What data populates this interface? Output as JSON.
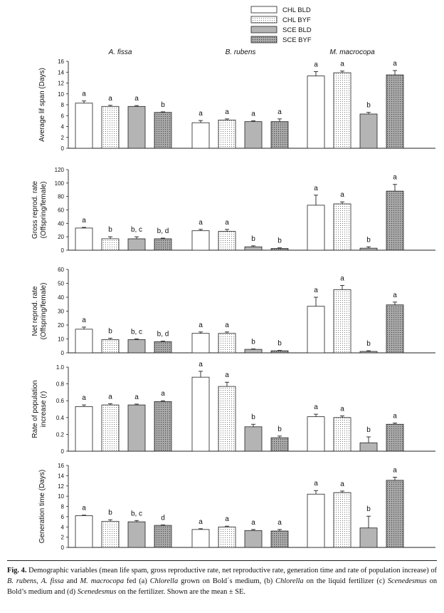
{
  "legend": [
    {
      "label": "CHL BLD",
      "pattern": "white"
    },
    {
      "label": "CHL BYF",
      "pattern": "dots-light"
    },
    {
      "label": "SCE BLD",
      "pattern": "gray"
    },
    {
      "label": "SCE BYF",
      "pattern": "dots-dark"
    }
  ],
  "species": [
    "A. fissa",
    "B. rubens",
    "M. macrocopa"
  ],
  "colors": {
    "white": "#ffffff",
    "gray": "#b4b4b4",
    "dots_light_bg": "#ffffff",
    "dots_dark_bg": "#a9a9a9",
    "stroke": "#222222"
  },
  "chart_data": [
    {
      "type": "bar",
      "ylabel": [
        "Average lif span (Days)"
      ],
      "ylim": [
        0,
        16
      ],
      "yticks": [
        "0",
        "2",
        "4",
        "6",
        "8",
        "10",
        "12",
        "14",
        "16"
      ],
      "groups": [
        "A. fissa",
        "B. rubens",
        "M. macrocopa"
      ],
      "series": [
        {
          "name": "CHL BLD",
          "values": [
            8.3,
            4.7,
            13.3
          ],
          "errors": [
            0.4,
            0.4,
            0.8
          ],
          "letters": [
            "a",
            "a",
            "a"
          ]
        },
        {
          "name": "CHL BYF",
          "values": [
            7.7,
            5.2,
            13.9
          ],
          "errors": [
            0.2,
            0.2,
            0.3
          ],
          "letters": [
            "a",
            "a",
            "a"
          ]
        },
        {
          "name": "SCE BLD",
          "values": [
            7.7,
            4.9,
            6.3
          ],
          "errors": [
            0.15,
            0.15,
            0.3
          ],
          "letters": [
            "a",
            "a",
            "b"
          ]
        },
        {
          "name": "SCE BYF",
          "values": [
            6.6,
            4.9,
            13.5
          ],
          "errors": [
            0.1,
            0.5,
            0.8
          ],
          "letters": [
            "b",
            "a",
            "a"
          ]
        }
      ]
    },
    {
      "type": "bar",
      "ylabel": [
        "Gross reprod. rate",
        "(Offspring/female)"
      ],
      "ylim": [
        0,
        120
      ],
      "yticks": [
        "0",
        "20",
        "40",
        "60",
        "80",
        "100",
        "120"
      ],
      "groups": [
        "A. fissa",
        "B. rubens",
        "M. macrocopa"
      ],
      "series": [
        {
          "name": "CHL BLD",
          "values": [
            33,
            29,
            67
          ],
          "errors": [
            1,
            2,
            15
          ],
          "letters": [
            "a",
            "a",
            "a"
          ]
        },
        {
          "name": "CHL BYF",
          "values": [
            17,
            28,
            69
          ],
          "errors": [
            3,
            3,
            3
          ],
          "letters": [
            "b",
            "a",
            "a"
          ]
        },
        {
          "name": "SCE BLD",
          "values": [
            17,
            5,
            3
          ],
          "errors": [
            3,
            1.5,
            2
          ],
          "letters": [
            "b, c",
            "b",
            "b"
          ]
        },
        {
          "name": "SCE BYF",
          "values": [
            17,
            2.5,
            88
          ],
          "errors": [
            1,
            1,
            10
          ],
          "letters": [
            "b, d",
            "b",
            "a"
          ]
        }
      ]
    },
    {
      "type": "bar",
      "ylabel": [
        "Net reprod. rate",
        "(Offspring/female)"
      ],
      "ylim": [
        0,
        60
      ],
      "yticks": [
        "0",
        "10",
        "20",
        "30",
        "40",
        "50",
        "60"
      ],
      "groups": [
        "A. fissa",
        "B. rubens",
        "M. macrocopa"
      ],
      "series": [
        {
          "name": "CHL BLD",
          "values": [
            17,
            14,
            33.5
          ],
          "errors": [
            1.5,
            1,
            6.5
          ],
          "letters": [
            "a",
            "a",
            "a"
          ]
        },
        {
          "name": "CHL BYF",
          "values": [
            9.5,
            14,
            45.5
          ],
          "errors": [
            1,
            1,
            3
          ],
          "letters": [
            "b",
            "a",
            "a"
          ]
        },
        {
          "name": "SCE BLD",
          "values": [
            9.5,
            2.5,
            1
          ],
          "errors": [
            0.5,
            0.3,
            0.5
          ],
          "letters": [
            "b, c",
            "b",
            "b"
          ]
        },
        {
          "name": "SCE BYF",
          "values": [
            8,
            1.5,
            34.5
          ],
          "errors": [
            0.4,
            0.3,
            2
          ],
          "letters": [
            "b, d",
            "b",
            "a"
          ]
        }
      ]
    },
    {
      "type": "bar",
      "ylabel": [
        "Rate of population",
        "increase (r)"
      ],
      "ylim": [
        0,
        1.0
      ],
      "yticks": [
        "0",
        "0.2",
        "0.4",
        "0.6",
        "0.8",
        "1.0"
      ],
      "groups": [
        "A. fissa",
        "B. rubens",
        "M. macrocopa"
      ],
      "series": [
        {
          "name": "CHL BLD",
          "values": [
            0.53,
            0.88,
            0.41
          ],
          "errors": [
            0.02,
            0.07,
            0.03
          ],
          "letters": [
            "a",
            "a",
            "a"
          ]
        },
        {
          "name": "CHL BYF",
          "values": [
            0.55,
            0.77,
            0.4
          ],
          "errors": [
            0.015,
            0.05,
            0.02
          ],
          "letters": [
            "a",
            "a",
            "a"
          ]
        },
        {
          "name": "SCE BLD",
          "values": [
            0.55,
            0.29,
            0.1
          ],
          "errors": [
            0.01,
            0.03,
            0.07
          ],
          "letters": [
            "a",
            "b",
            "b"
          ]
        },
        {
          "name": "SCE BYF",
          "values": [
            0.59,
            0.16,
            0.32
          ],
          "errors": [
            0.01,
            0.02,
            0.015
          ],
          "letters": [
            "a",
            "b",
            "a"
          ]
        }
      ]
    },
    {
      "type": "bar",
      "ylabel": [
        "Generation time (Days)"
      ],
      "ylim": [
        0,
        16
      ],
      "yticks": [
        "0",
        "2",
        "4",
        "6",
        "8",
        "10",
        "12",
        "14",
        "16"
      ],
      "groups": [
        "A. fissa",
        "B. rubens",
        "M. macrocopa"
      ],
      "series": [
        {
          "name": "CHL BLD",
          "values": [
            6.2,
            3.5,
            10.4
          ],
          "errors": [
            0.1,
            0.15,
            0.7
          ],
          "letters": [
            "a",
            "a",
            "a"
          ]
        },
        {
          "name": "CHL BYF",
          "values": [
            5.1,
            4.0,
            10.7
          ],
          "errors": [
            0.3,
            0.15,
            0.3
          ],
          "letters": [
            "b",
            "a",
            "a"
          ]
        },
        {
          "name": "SCE BLD",
          "values": [
            5.0,
            3.3,
            3.8
          ],
          "errors": [
            0.25,
            0.2,
            2.3
          ],
          "letters": [
            "b, c",
            "a",
            "b"
          ]
        },
        {
          "name": "SCE BYF",
          "values": [
            4.3,
            3.2,
            13.1
          ],
          "errors": [
            0.1,
            0.3,
            0.6
          ],
          "letters": [
            "d",
            "a",
            "a"
          ]
        }
      ]
    }
  ],
  "caption": {
    "label": "Fig. 4.",
    "segments": [
      {
        "t": " Demographic variables (mean life spam, gross reproductive rate, net reproductive rate, generation time and rate of population increase) of ",
        "s": "n"
      },
      {
        "t": "B. rubens",
        "s": "i"
      },
      {
        "t": ", ",
        "s": "n"
      },
      {
        "t": "A. fissa",
        "s": "i"
      },
      {
        "t": " and ",
        "s": "n"
      },
      {
        "t": "M. macrocopa",
        "s": "i"
      },
      {
        "t": " fed (a) ",
        "s": "n"
      },
      {
        "t": "Chlorella",
        "s": "i"
      },
      {
        "t": " grown on Bold´s medium, (b) ",
        "s": "n"
      },
      {
        "t": "Chlorella",
        "s": "i"
      },
      {
        "t": " on the liquid fertilizer (c) ",
        "s": "n"
      },
      {
        "t": "Scenedesmus",
        "s": "i"
      },
      {
        "t": " on Bold’s medium and (d) ",
        "s": "n"
      },
      {
        "t": "Scenedesmus",
        "s": "i"
      },
      {
        "t": " on the fertilizer. Shown are the mean ± SE.",
        "s": "n"
      }
    ]
  }
}
